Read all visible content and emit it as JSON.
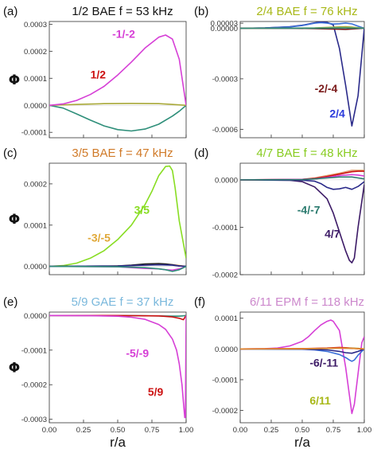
{
  "axis_labels": {
    "y": "Φ",
    "x": "r/a"
  },
  "colors": {
    "magenta": "#d63fd6",
    "red": "#cc1111",
    "olive": "#a8a838",
    "teal": "#2f8f7a",
    "navy": "#2a2a8a",
    "blue": "#3a6fd8",
    "darkred": "#7a1a1a",
    "darkpurple": "#3c1a66",
    "green": "#88dd22",
    "orange": "#e08a2e",
    "tealgreen": "#2a7a6e",
    "lightorange": "#e0a070",
    "darkgray": "#333333"
  },
  "chart_data": [
    {
      "type": "line",
      "panel_label": "(a)",
      "title": "1/2 BAE f = 53 kHz",
      "title_color": "#111111",
      "xlabel": "",
      "ylabel": "Φ",
      "xlim": [
        0,
        1
      ],
      "ylim": [
        -0.00012,
        0.00031
      ],
      "xticks": [
        0,
        0.25,
        0.5,
        0.75,
        1.0
      ],
      "xticklabels": [],
      "show_y_label": true,
      "yticks": [
        -0.0001,
        0,
        0.0001,
        0.0002,
        0.0003
      ],
      "yticklabels": [
        "-0.0001",
        "0.0000",
        "0.0001",
        "0.0002",
        "0.0003"
      ],
      "series": [
        {
          "color": "#2f8f7a",
          "x": [
            0,
            0.1,
            0.2,
            0.3,
            0.4,
            0.5,
            0.6,
            0.7,
            0.8,
            0.9,
            0.95,
            1.0
          ],
          "y": [
            0,
            -1e-05,
            -3.2e-05,
            -5.5e-05,
            -7.6e-05,
            -9e-05,
            -9.5e-05,
            -8.8e-05,
            -7e-05,
            -4e-05,
            -2.2e-05,
            0
          ]
        },
        {
          "color": "#a8a838",
          "x": [
            0,
            0.2,
            0.4,
            0.6,
            0.8,
            0.9,
            1.0
          ],
          "y": [
            0,
            3e-06,
            6e-06,
            7e-06,
            6e-06,
            3e-06,
            0
          ]
        },
        {
          "color": "#d63fd6",
          "x": [
            0,
            0.1,
            0.2,
            0.3,
            0.4,
            0.5,
            0.6,
            0.7,
            0.8,
            0.85,
            0.9,
            0.95,
            1.0
          ],
          "y": [
            0,
            5e-06,
            1.8e-05,
            4e-05,
            7e-05,
            0.000112,
            0.00016,
            0.000212,
            0.000252,
            0.00026,
            0.000245,
            0.00017,
            0
          ]
        }
      ],
      "annotations": [
        {
          "text": "-1/-2",
          "color": "#d63fd6",
          "x": 0.46,
          "y": 0.00025
        },
        {
          "text": "1/2",
          "color": "#cc1111",
          "x": 0.3,
          "y": 0.0001
        }
      ]
    },
    {
      "type": "line",
      "panel_label": "(b)",
      "title": "2/4 BAE f = 76 kHz",
      "title_color": "#a8b818",
      "xlabel": "",
      "ylabel": "",
      "xlim": [
        0,
        1
      ],
      "ylim": [
        -0.00065,
        4e-05
      ],
      "xticks": [
        0,
        0.25,
        0.5,
        0.75,
        1.0
      ],
      "xticklabels": [],
      "show_y_label": false,
      "yticks": [
        3e-05,
        0,
        -0.0003,
        -0.0006
      ],
      "yticklabels": [
        "0.00003",
        "0.00000",
        "-0.0003",
        "-0.0006"
      ],
      "series": [
        {
          "color": "#2a2a8a",
          "x": [
            0,
            0.2,
            0.4,
            0.5,
            0.6,
            0.65,
            0.7,
            0.75,
            0.8,
            0.85,
            0.9,
            0.95,
            1.0
          ],
          "y": [
            0,
            2e-06,
            9e-06,
            1.8e-05,
            3.2e-05,
            3.8e-05,
            3.5e-05,
            2e-05,
            -0.00012,
            -0.00034,
            -0.00058,
            -0.0004,
            0
          ]
        },
        {
          "color": "#3a6fd8",
          "x": [
            0,
            0.2,
            0.4,
            0.5,
            0.6,
            0.65,
            0.7,
            0.75,
            0.8,
            0.85,
            0.9,
            0.95,
            1.0
          ],
          "y": [
            0,
            2e-06,
            8e-06,
            1.6e-05,
            3e-05,
            3.3e-05,
            3e-05,
            2.5e-05,
            2.7e-05,
            3.1e-05,
            2.6e-05,
            1.2e-05,
            0
          ]
        },
        {
          "color": "#a8a838",
          "x": [
            0,
            0.4,
            0.6,
            0.7,
            0.8,
            0.85,
            0.9,
            0.95,
            1.0
          ],
          "y": [
            0,
            5e-07,
            2e-06,
            5e-06,
            8e-06,
            9e-06,
            7e-06,
            3e-06,
            0
          ]
        },
        {
          "color": "#7a1a1a",
          "x": [
            0,
            0.4,
            0.6,
            0.7,
            0.8,
            0.85,
            0.9,
            0.95,
            1.0
          ],
          "y": [
            0,
            -5e-07,
            -2e-06,
            -4e-06,
            -6e-06,
            -7e-06,
            -5e-06,
            -2e-06,
            0
          ]
        },
        {
          "color": "#2f8f7a",
          "x": [
            0,
            0.5,
            0.7,
            0.8,
            0.9,
            1.0
          ],
          "y": [
            0,
            3e-07,
            1e-06,
            2e-06,
            1e-06,
            0
          ]
        }
      ],
      "annotations": [
        {
          "text": "-2/-4",
          "color": "#7a1a1a",
          "x": 0.6,
          "y": -0.00038
        },
        {
          "text": "2/4",
          "color": "#2a3adc",
          "x": 0.72,
          "y": -0.00053
        }
      ]
    },
    {
      "type": "line",
      "panel_label": "(c)",
      "title": "3/5 BAE f = 47 kHz",
      "title_color": "#d07a28",
      "xlabel": "",
      "ylabel": "Φ",
      "xlim": [
        0,
        1
      ],
      "ylim": [
        -2e-05,
        0.00025
      ],
      "xticks": [
        0,
        0.25,
        0.5,
        0.75,
        1.0
      ],
      "xticklabels": [],
      "show_y_label": true,
      "yticks": [
        0,
        0.0001,
        0.0002
      ],
      "yticklabels": [
        "0.0000",
        "0.0001",
        "0.0002"
      ],
      "series": [
        {
          "color": "#88dd22",
          "x": [
            0,
            0.1,
            0.2,
            0.3,
            0.4,
            0.5,
            0.6,
            0.7,
            0.75,
            0.8,
            0.85,
            0.88,
            0.9,
            0.92,
            0.95,
            1.0
          ],
          "y": [
            0,
            2e-06,
            8e-06,
            2e-05,
            3.8e-05,
            6.5e-05,
            0.0001,
            0.00015,
            0.000182,
            0.00022,
            0.000242,
            0.000243,
            0.000232,
            0.00019,
            0.00011,
            2e-05
          ]
        },
        {
          "color": "#e08a2e",
          "x": [
            0,
            0.4,
            0.6,
            0.7,
            0.8,
            0.9,
            1.0
          ],
          "y": [
            0,
            5e-07,
            2e-06,
            4e-06,
            6e-06,
            4e-06,
            0
          ]
        },
        {
          "color": "#222222",
          "x": [
            0,
            0.5,
            0.6,
            0.7,
            0.8,
            0.85,
            0.9,
            0.95,
            1.0
          ],
          "y": [
            0,
            1e-06,
            3e-06,
            6e-06,
            7e-06,
            6e-06,
            4e-06,
            1e-06,
            0
          ]
        },
        {
          "color": "#d63fd6",
          "x": [
            0,
            0.5,
            0.6,
            0.7,
            0.8,
            0.85,
            0.9,
            0.95,
            1.0
          ],
          "y": [
            0,
            -1e-06,
            -3e-06,
            -5e-06,
            -6e-06,
            -8e-06,
            -9e-06,
            -6e-06,
            0
          ]
        },
        {
          "color": "#2a2a8a",
          "x": [
            0,
            0.5,
            0.7,
            0.8,
            0.9,
            0.95,
            1.0
          ],
          "y": [
            0,
            1e-06,
            3e-06,
            4e-06,
            3e-06,
            1e-06,
            0
          ]
        },
        {
          "color": "#2f8f7a",
          "x": [
            0,
            0.5,
            0.7,
            0.8,
            0.85,
            0.9,
            0.95,
            1.0
          ],
          "y": [
            0,
            -1e-06,
            -3e-06,
            -6e-06,
            -8e-06,
            -1.2e-05,
            -8e-06,
            0
          ]
        }
      ],
      "annotations": [
        {
          "text": "3/5",
          "color": "#88dd22",
          "x": 0.62,
          "y": 0.000128
        },
        {
          "text": "-3/-5",
          "color": "#e0a838",
          "x": 0.28,
          "y": 6e-05
        }
      ]
    },
    {
      "type": "line",
      "panel_label": "(d)",
      "title": "4/7 BAE f = 48 kHz",
      "title_color": "#88cc22",
      "xlabel": "",
      "ylabel": "",
      "xlim": [
        0,
        1
      ],
      "ylim": [
        -0.0002,
        3.5e-05
      ],
      "xticks": [
        0,
        0.25,
        0.5,
        0.75,
        1.0
      ],
      "xticklabels": [],
      "show_y_label": false,
      "yticks": [
        0,
        -0.0001,
        -0.0002
      ],
      "yticklabels": [
        "0.0000",
        "-0.0001",
        "-0.0002"
      ],
      "series": [
        {
          "color": "#3c1a66",
          "x": [
            0,
            0.4,
            0.5,
            0.6,
            0.7,
            0.75,
            0.8,
            0.85,
            0.88,
            0.9,
            0.92,
            0.95,
            1.0
          ],
          "y": [
            0,
            -1e-06,
            -4e-06,
            -1.5e-05,
            -4e-05,
            -7e-05,
            -0.00011,
            -0.00015,
            -0.00017,
            -0.000175,
            -0.000165,
            -0.0001,
            -1e-05
          ]
        },
        {
          "color": "#2a2a8a",
          "x": [
            0,
            0.5,
            0.6,
            0.65,
            0.7,
            0.75,
            0.8,
            0.85,
            0.9,
            0.95,
            1.0
          ],
          "y": [
            0,
            -1e-06,
            -3e-06,
            -8e-06,
            -1.6e-05,
            -2e-05,
            -1.9e-05,
            -1.6e-05,
            -2e-05,
            -1.4e-05,
            -4e-06
          ]
        },
        {
          "color": "#e0a070",
          "x": [
            0,
            0.5,
            0.6,
            0.7,
            0.8,
            0.9,
            0.95,
            1.0
          ],
          "y": [
            0,
            1e-06,
            4e-06,
            9e-06,
            1.4e-05,
            2e-05,
            2e-05,
            2e-05
          ]
        },
        {
          "color": "#cc1111",
          "x": [
            0,
            0.5,
            0.6,
            0.7,
            0.8,
            0.9,
            0.95,
            1.0
          ],
          "y": [
            0,
            1e-06,
            3e-06,
            7e-06,
            1.2e-05,
            1.7e-05,
            1.8e-05,
            1.8e-05
          ]
        },
        {
          "color": "#d63fd6",
          "x": [
            0,
            0.5,
            0.6,
            0.7,
            0.8,
            0.9,
            0.95,
            1.0
          ],
          "y": [
            0,
            1e-06,
            2e-06,
            5e-06,
            9e-06,
            1.1e-05,
            1e-05,
            8e-06
          ]
        },
        {
          "color": "#2a7a6e",
          "x": [
            0,
            0.5,
            0.6,
            0.7,
            0.8,
            0.9,
            0.95,
            1.0
          ],
          "y": [
            0,
            5e-07,
            2e-06,
            4e-06,
            6e-06,
            6e-06,
            4e-06,
            2e-06
          ]
        }
      ],
      "annotations": [
        {
          "text": "-4/-7",
          "color": "#2a7a6e",
          "x": 0.46,
          "y": -7.2e-05
        },
        {
          "text": "4/7",
          "color": "#3c1a66",
          "x": 0.68,
          "y": -0.000122
        }
      ]
    },
    {
      "type": "line",
      "panel_label": "(e)",
      "title": "5/9 GAE f = 37 kHz",
      "title_color": "#7ab8dc",
      "xlabel": "r/a",
      "ylabel": "Φ",
      "xlim": [
        0,
        1
      ],
      "ylim": [
        -0.00031,
        1e-05
      ],
      "xticks": [
        0,
        0.25,
        0.5,
        0.75,
        1.0
      ],
      "xticklabels": [
        "0.00",
        "0.25",
        "0.50",
        "0.75",
        "1.00"
      ],
      "show_y_label": true,
      "yticks": [
        0,
        -0.0001,
        -0.0002,
        -0.0003
      ],
      "yticklabels": [
        "0.0000",
        "-0.0001",
        "-0.0002",
        "-0.0003"
      ],
      "series": [
        {
          "color": "#2f8f7a",
          "x": [
            0,
            0.5,
            0.8,
            0.9,
            0.95,
            1.0
          ],
          "y": [
            0,
            0,
            -1e-06,
            -2e-06,
            -2e-06,
            0
          ]
        },
        {
          "color": "#cc1111",
          "x": [
            0,
            0.5,
            0.8,
            0.9,
            0.95,
            0.98,
            1.0
          ],
          "y": [
            0,
            0,
            -1e-06,
            -4e-06,
            -8e-06,
            -1.2e-05,
            0
          ]
        },
        {
          "color": "#d63fd6",
          "x": [
            0,
            0.3,
            0.5,
            0.6,
            0.7,
            0.8,
            0.85,
            0.9,
            0.93,
            0.95,
            0.97,
            0.98,
            0.99,
            0.995,
            1.0
          ],
          "y": [
            0,
            -5e-07,
            -2e-06,
            -5e-06,
            -1.1e-05,
            -2.6e-05,
            -4e-05,
            -6.8e-05,
            -0.0001,
            -0.00014,
            -0.0002,
            -0.00025,
            -0.000295,
            -0.000295,
            0
          ]
        }
      ],
      "annotations": [
        {
          "text": "-5/-9",
          "color": "#d63fd6",
          "x": 0.56,
          "y": -0.00012
        },
        {
          "text": "5/9",
          "color": "#cc1111",
          "x": 0.72,
          "y": -0.000232
        }
      ]
    },
    {
      "type": "line",
      "panel_label": "(f)",
      "title": "6/11 EPM f = 118 kHz",
      "title_color": "#cc88cc",
      "xlabel": "r/a",
      "ylabel": "",
      "xlim": [
        0,
        1
      ],
      "ylim": [
        -0.00024,
        0.00012
      ],
      "xticks": [
        0,
        0.25,
        0.5,
        0.75,
        1.0
      ],
      "xticklabels": [
        "0.00",
        "0.25",
        "0.50",
        "0.75",
        "1.00"
      ],
      "show_y_label": false,
      "yticks": [
        0.0001,
        0,
        -0.0001,
        -0.0002
      ],
      "yticklabels": [
        "0.0001",
        "0.0000",
        "-0.0001",
        "-0.0002"
      ],
      "series": [
        {
          "color": "#d63fd6",
          "x": [
            0,
            0.2,
            0.3,
            0.4,
            0.5,
            0.55,
            0.6,
            0.65,
            0.7,
            0.73,
            0.75,
            0.8,
            0.85,
            0.88,
            0.9,
            0.92,
            0.95,
            0.98,
            1.0
          ],
          "y": [
            0,
            1e-06,
            3e-06,
            1e-05,
            2.5e-05,
            4e-05,
            6e-05,
            7.8e-05,
            9e-05,
            9.4e-05,
            9e-05,
            6e-05,
            -6e-05,
            -0.00015,
            -0.00021,
            -0.00018,
            -8e-05,
            2e-05,
            4e-05
          ]
        },
        {
          "color": "#3a6fd8",
          "x": [
            0,
            0.5,
            0.6,
            0.7,
            0.8,
            0.85,
            0.88,
            0.9,
            0.92,
            0.95,
            1.0
          ],
          "y": [
            0,
            -1e-06,
            -3e-06,
            -8e-06,
            -1.8e-05,
            -2.8e-05,
            -3.6e-05,
            -4e-05,
            -3.6e-05,
            -2e-05,
            0
          ]
        },
        {
          "color": "#2a2a8a",
          "x": [
            0,
            0.5,
            0.7,
            0.8,
            0.85,
            0.9,
            0.95,
            1.0
          ],
          "y": [
            0,
            -5e-07,
            -3e-06,
            -8e-06,
            -1.2e-05,
            -1.4e-05,
            -8e-06,
            0
          ]
        },
        {
          "color": "#a8a838",
          "x": [
            0,
            0.5,
            0.7,
            0.8,
            0.9,
            0.95,
            1.0
          ],
          "y": [
            0,
            5e-07,
            2e-06,
            4e-06,
            3e-06,
            2e-06,
            0
          ]
        },
        {
          "color": "#cc1111",
          "x": [
            0,
            0.5,
            0.7,
            0.8,
            0.85,
            0.9,
            0.95,
            1.0
          ],
          "y": [
            0,
            1e-06,
            3e-06,
            5e-06,
            4e-06,
            2e-06,
            1e-06,
            0
          ]
        },
        {
          "color": "#e08a2e",
          "x": [
            0,
            0.5,
            0.7,
            0.8,
            0.9,
            1.0
          ],
          "y": [
            0,
            5e-07,
            2e-06,
            3e-06,
            2e-06,
            0
          ]
        }
      ],
      "annotations": [
        {
          "text": "-6/-11",
          "color": "#3c1a66",
          "x": 0.56,
          "y": -5.8e-05
        },
        {
          "text": "6/11",
          "color": "#a8b818",
          "x": 0.56,
          "y": -0.00018
        }
      ]
    }
  ]
}
